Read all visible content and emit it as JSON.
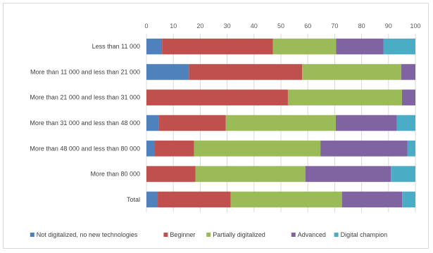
{
  "chart_data": {
    "type": "bar",
    "orientation": "horizontal",
    "stacked": "100%",
    "xlim": [
      0,
      100
    ],
    "x_ticks": [
      "0",
      "10",
      "20",
      "30",
      "40",
      "50",
      "60",
      "70",
      "80",
      "90",
      "100"
    ],
    "grid": true,
    "legend_position": "bottom",
    "categories": [
      "Less than 11 000",
      "More than 11 000 and less than 21 000",
      "More than 21 000 and less than 31 000",
      "More than 31 000 and less than 48 000",
      "More than 48 000 and less than 80 000",
      "More than 80 000",
      "Total"
    ],
    "series": [
      {
        "name": "Not digitalized, no new technologies",
        "color": "#4f81bd",
        "values": [
          5.8,
          15.8,
          0,
          4.5,
          3.0,
          0,
          4.2
        ]
      },
      {
        "name": "Beginner",
        "color": "#c0504d",
        "values": [
          41.2,
          42.1,
          52.6,
          25.0,
          14.7,
          18.2,
          27.1
        ]
      },
      {
        "name": "Partially digitalized",
        "color": "#9bbb59",
        "values": [
          23.5,
          36.8,
          42.4,
          40.9,
          47.0,
          40.9,
          41.4
        ]
      },
      {
        "name": "Advanced",
        "color": "#8064a2",
        "values": [
          17.6,
          5.3,
          5.0,
          22.7,
          32.3,
          31.8,
          22.4
        ]
      },
      {
        "name": "Digital champion",
        "color": "#4bacc6",
        "values": [
          11.9,
          0,
          0,
          6.9,
          3.0,
          9.1,
          4.9
        ]
      }
    ]
  }
}
